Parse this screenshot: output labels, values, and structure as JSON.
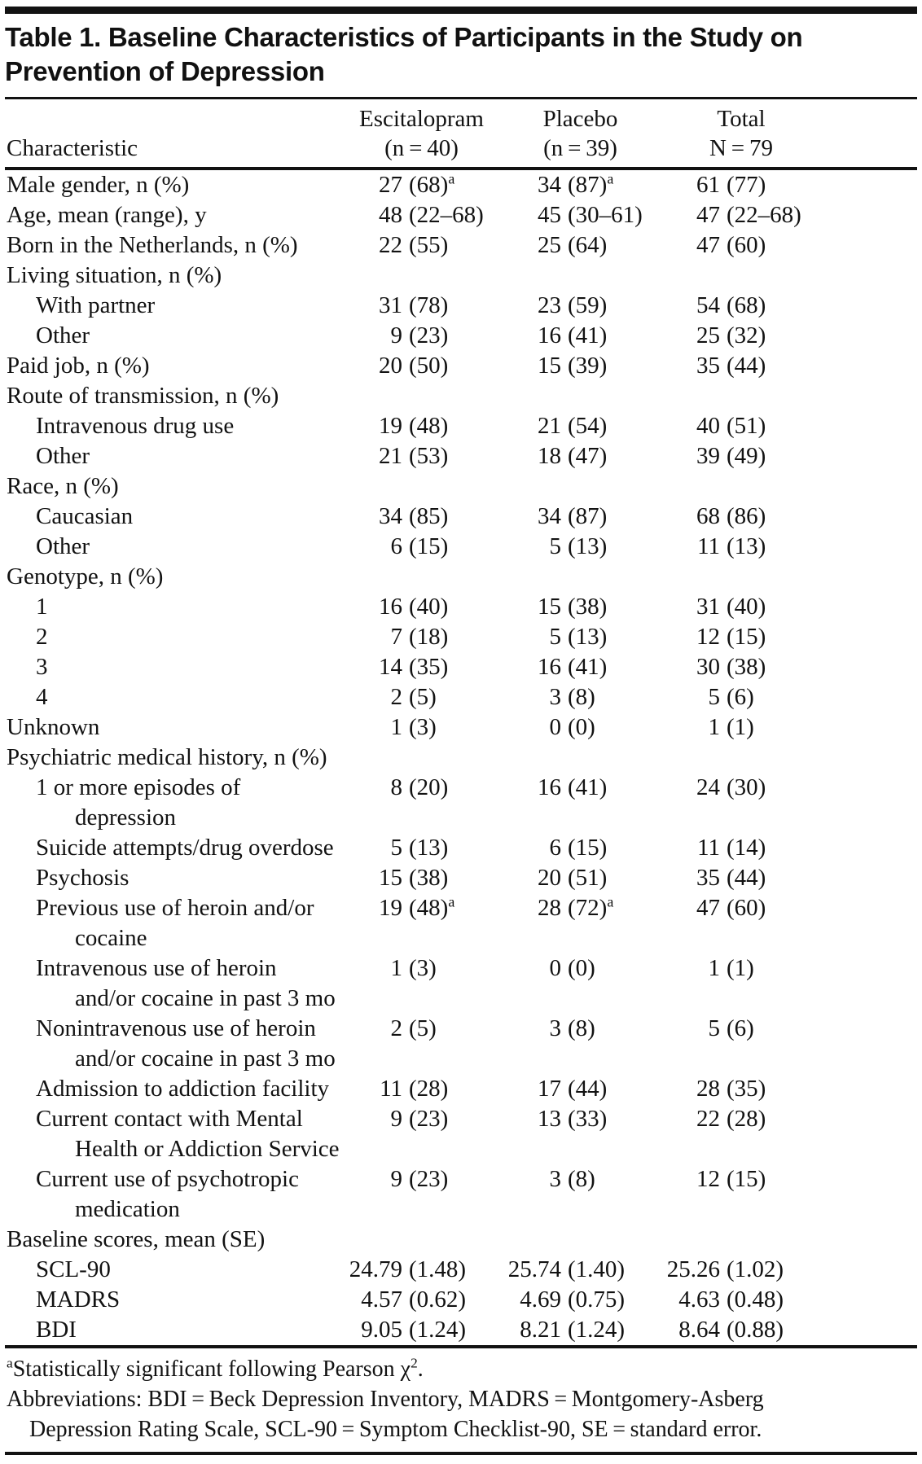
{
  "title": "Table 1. Baseline Characteristics of Participants in the Study on Prevention of Depression",
  "columns": {
    "characteristic": "Characteristic",
    "esc_line1": "Escitalopram",
    "esc_line2": "(n = 40)",
    "pla_line1": "Placebo",
    "pla_line2": "(n = 39)",
    "tot_line1": "Total",
    "tot_line2": "N = 79"
  },
  "table": {
    "rows": [
      {
        "label": "Male gender, n (%)",
        "indent": 0,
        "esc": "27 (68)^a",
        "pla": "34 (87)^a",
        "tot": "61 (77)"
      },
      {
        "label": "Age, mean (range), y",
        "indent": 0,
        "esc": "48 (22–68)",
        "pla": "45 (30–61)",
        "tot": "47 (22–68)"
      },
      {
        "label": "Born in the Netherlands, n (%)",
        "indent": 0,
        "esc": "22 (55)",
        "pla": "25 (64)",
        "tot": "47 (60)"
      },
      {
        "label": "Living situation, n (%)",
        "indent": 0
      },
      {
        "label": "With partner",
        "indent": 1,
        "esc": "31 (78)",
        "pla": "23 (59)",
        "tot": "54 (68)"
      },
      {
        "label": "Other",
        "indent": 1,
        "esc": "9 (23)",
        "pla": "16 (41)",
        "tot": "25 (32)"
      },
      {
        "label": "Paid job, n (%)",
        "indent": 0,
        "esc": "20 (50)",
        "pla": "15 (39)",
        "tot": "35 (44)"
      },
      {
        "label": "Route of transmission, n (%)",
        "indent": 0
      },
      {
        "label": "Intravenous drug use",
        "indent": 1,
        "esc": "19 (48)",
        "pla": "21 (54)",
        "tot": "40 (51)"
      },
      {
        "label": "Other",
        "indent": 1,
        "esc": "21 (53)",
        "pla": "18 (47)",
        "tot": "39 (49)"
      },
      {
        "label": "Race, n (%)",
        "indent": 0
      },
      {
        "label": "Caucasian",
        "indent": 1,
        "esc": "34 (85)",
        "pla": "34 (87)",
        "tot": "68 (86)"
      },
      {
        "label": "Other",
        "indent": 1,
        "esc": "6 (15)",
        "pla": "5 (13)",
        "tot": "11 (13)"
      },
      {
        "label": "Genotype, n (%)",
        "indent": 0
      },
      {
        "label": "1",
        "indent": 1,
        "esc": "16 (40)",
        "pla": "15 (38)",
        "tot": "31 (40)"
      },
      {
        "label": "2",
        "indent": 1,
        "esc": "7 (18)",
        "pla": "5 (13)",
        "tot": "12 (15)"
      },
      {
        "label": "3",
        "indent": 1,
        "esc": "14 (35)",
        "pla": "16 (41)",
        "tot": "30 (38)"
      },
      {
        "label": "4",
        "indent": 1,
        "esc": "2 (5)",
        "pla": "3 (8)",
        "tot": "5 (6)"
      },
      {
        "label": "Unknown",
        "indent": 0,
        "esc": "1 (3)",
        "pla": "0 (0)",
        "tot": "1 (1)"
      },
      {
        "label": "Psychiatric medical history, n (%)",
        "indent": 0
      },
      {
        "label": "1 or more episodes of",
        "label2": "depression",
        "indent": 1,
        "esc": "8 (20)",
        "pla": "16 (41)",
        "tot": "24 (30)"
      },
      {
        "label": "Suicide attempts/drug overdose",
        "indent": 1,
        "esc": "5 (13)",
        "pla": "6 (15)",
        "tot": "11 (14)"
      },
      {
        "label": "Psychosis",
        "indent": 1,
        "esc": "15 (38)",
        "pla": "20 (51)",
        "tot": "35 (44)"
      },
      {
        "label": "Previous use of heroin and/or",
        "label2": "cocaine",
        "indent": 1,
        "esc": "19 (48)^a",
        "pla": "28 (72)^a",
        "tot": "47 (60)"
      },
      {
        "label": "Intravenous use of heroin",
        "label2": "and/or cocaine in past 3 mo",
        "indent": 1,
        "esc": "1 (3)",
        "pla": "0 (0)",
        "tot": "1 (1)"
      },
      {
        "label": "Nonintravenous use of heroin",
        "label2": "and/or cocaine in past 3 mo",
        "indent": 1,
        "esc": "2 (5)",
        "pla": "3 (8)",
        "tot": "5 (6)"
      },
      {
        "label": "Admission to addiction facility",
        "indent": 1,
        "esc": "11 (28)",
        "pla": "17 (44)",
        "tot": "28 (35)"
      },
      {
        "label": "Current contact with Mental",
        "label2": "Health or Addiction Service",
        "indent": 1,
        "esc": "9 (23)",
        "pla": "13 (33)",
        "tot": "22 (28)"
      },
      {
        "label": "Current use of psychotropic",
        "label2": "medication",
        "indent": 1,
        "esc": "9 (23)",
        "pla": "3 (8)",
        "tot": "12 (15)"
      },
      {
        "label": "Baseline scores, mean (SE)",
        "indent": 0
      },
      {
        "label": "SCL-90",
        "indent": 1,
        "esc": "24.79 (1.48)",
        "pla": "25.74 (1.40)",
        "tot": "25.26 (1.02)"
      },
      {
        "label": "MADRS",
        "indent": 1,
        "esc": "4.57 (0.62)",
        "pla": "4.69 (0.75)",
        "tot": "4.63 (0.48)"
      },
      {
        "label": "BDI",
        "indent": 1,
        "esc": "9.05 (1.24)",
        "pla": "8.21 (1.24)",
        "tot": "8.64 (0.88)"
      }
    ]
  },
  "footnotes": {
    "sig_sup": "a",
    "sig_text": "Statistically significant following Pearson χ",
    "sig_sup2": "2",
    "sig_period": ".",
    "abbr_line1": "Abbreviations: BDI = Beck Depression Inventory, MADRS = Montgomery-Asberg",
    "abbr_line2": "Depression Rating Scale, SCL-90 = Symptom Checklist-90, SE = standard error."
  }
}
